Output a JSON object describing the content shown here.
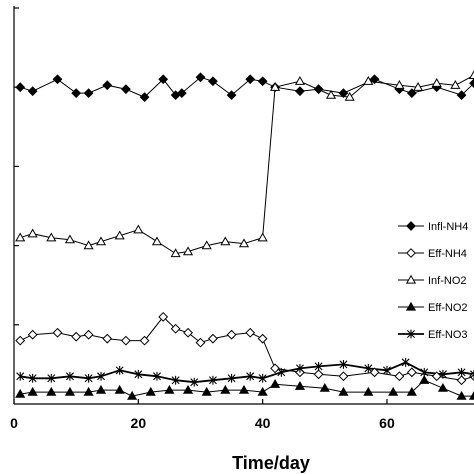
{
  "chart_data": {
    "type": "line",
    "title": "",
    "xlabel": "Time/day",
    "ylabel": "",
    "xlim": [
      0,
      74
    ],
    "ylim": [
      0,
      100
    ],
    "x_ticks": [
      0,
      20,
      40,
      60
    ],
    "y_ticks": [
      20,
      40,
      60,
      80,
      100
    ],
    "y_tick_labels_visible": false,
    "grid": false,
    "legend_position": "right",
    "series": [
      {
        "name": "Infl-NH4",
        "marker": "filled-diamond",
        "color": "#000000",
        "points": [
          [
            1,
            80
          ],
          [
            3,
            79
          ],
          [
            7,
            82
          ],
          [
            10,
            78.5
          ],
          [
            12,
            78.5
          ],
          [
            15,
            80.5
          ],
          [
            18,
            79.5
          ],
          [
            21,
            77.5
          ],
          [
            24,
            82
          ],
          [
            26,
            78
          ],
          [
            27,
            78.5
          ],
          [
            30,
            82.5
          ],
          [
            32,
            81.5
          ],
          [
            35,
            78
          ],
          [
            38,
            82
          ],
          [
            40,
            81.5
          ],
          [
            42,
            80
          ],
          [
            46,
            79
          ],
          [
            49,
            79.5
          ],
          [
            53,
            78.5
          ],
          [
            58,
            82
          ],
          [
            62,
            79.5
          ],
          [
            64,
            78.5
          ],
          [
            68,
            80
          ],
          [
            72,
            78
          ],
          [
            74,
            81
          ]
        ]
      },
      {
        "name": "Eff-NH4",
        "marker": "open-diamond",
        "color": "#000000",
        "points": [
          [
            1,
            16
          ],
          [
            3,
            17.5
          ],
          [
            7,
            18
          ],
          [
            10,
            17
          ],
          [
            12,
            17.5
          ],
          [
            15,
            16.5
          ],
          [
            18,
            16
          ],
          [
            21,
            16
          ],
          [
            24,
            22
          ],
          [
            26,
            19
          ],
          [
            28,
            18
          ],
          [
            30,
            15.5
          ],
          [
            32,
            16.5
          ],
          [
            35,
            17.5
          ],
          [
            38,
            18
          ],
          [
            40,
            16.5
          ],
          [
            42,
            9
          ],
          [
            46,
            8
          ],
          [
            49,
            7.5
          ],
          [
            53,
            7
          ],
          [
            58,
            8
          ],
          [
            62,
            7
          ],
          [
            64,
            8
          ],
          [
            68,
            7
          ],
          [
            72,
            6
          ],
          [
            74,
            7
          ]
        ]
      },
      {
        "name": "Inf-NO2",
        "marker": "open-triangle",
        "color": "#000000",
        "points": [
          [
            1,
            42
          ],
          [
            3,
            43
          ],
          [
            6,
            42
          ],
          [
            9,
            41.5
          ],
          [
            12,
            40
          ],
          [
            14,
            41
          ],
          [
            17,
            42.5
          ],
          [
            20,
            44
          ],
          [
            23,
            41
          ],
          [
            26,
            38
          ],
          [
            28,
            38.5
          ],
          [
            31,
            40
          ],
          [
            34,
            41
          ],
          [
            37,
            40.5
          ],
          [
            40,
            42
          ],
          [
            42,
            80
          ],
          [
            46,
            81.5
          ],
          [
            51,
            78
          ],
          [
            54,
            77.5
          ],
          [
            57,
            81.5
          ],
          [
            62,
            80.5
          ],
          [
            65,
            80
          ],
          [
            68,
            81
          ],
          [
            71,
            80.5
          ],
          [
            74,
            83
          ]
        ]
      },
      {
        "name": "Eff-NO2",
        "marker": "filled-triangle",
        "color": "#000000",
        "points": [
          [
            1,
            2.5
          ],
          [
            3,
            3
          ],
          [
            6,
            3
          ],
          [
            9,
            3
          ],
          [
            12,
            3
          ],
          [
            14,
            3.5
          ],
          [
            17,
            3.5
          ],
          [
            19,
            2
          ],
          [
            22,
            3
          ],
          [
            25,
            3.5
          ],
          [
            28,
            3.5
          ],
          [
            31,
            3
          ],
          [
            34,
            3.5
          ],
          [
            37,
            3.5
          ],
          [
            40,
            3
          ],
          [
            42,
            5
          ],
          [
            46,
            4.5
          ],
          [
            50,
            4
          ],
          [
            53,
            3
          ],
          [
            57,
            3
          ],
          [
            61,
            3
          ],
          [
            64,
            3
          ],
          [
            66,
            6
          ],
          [
            69,
            4
          ],
          [
            72,
            2
          ],
          [
            74,
            2
          ]
        ]
      },
      {
        "name": "Eff-NO3",
        "marker": "star",
        "color": "#000000",
        "points": [
          [
            1,
            7
          ],
          [
            3,
            6.5
          ],
          [
            6,
            6.5
          ],
          [
            9,
            7
          ],
          [
            12,
            6.5
          ],
          [
            14,
            7
          ],
          [
            17,
            8.5
          ],
          [
            20,
            7.5
          ],
          [
            23,
            7
          ],
          [
            26,
            6
          ],
          [
            29,
            5.5
          ],
          [
            32,
            6
          ],
          [
            35,
            6.5
          ],
          [
            38,
            7
          ],
          [
            40,
            6.5
          ],
          [
            43,
            8
          ],
          [
            46,
            9
          ],
          [
            49,
            9.5
          ],
          [
            53,
            10
          ],
          [
            57,
            9
          ],
          [
            60,
            8.5
          ],
          [
            63,
            10.5
          ],
          [
            66,
            8
          ],
          [
            69,
            7.5
          ],
          [
            72,
            8
          ],
          [
            74,
            7.5
          ]
        ]
      }
    ]
  }
}
